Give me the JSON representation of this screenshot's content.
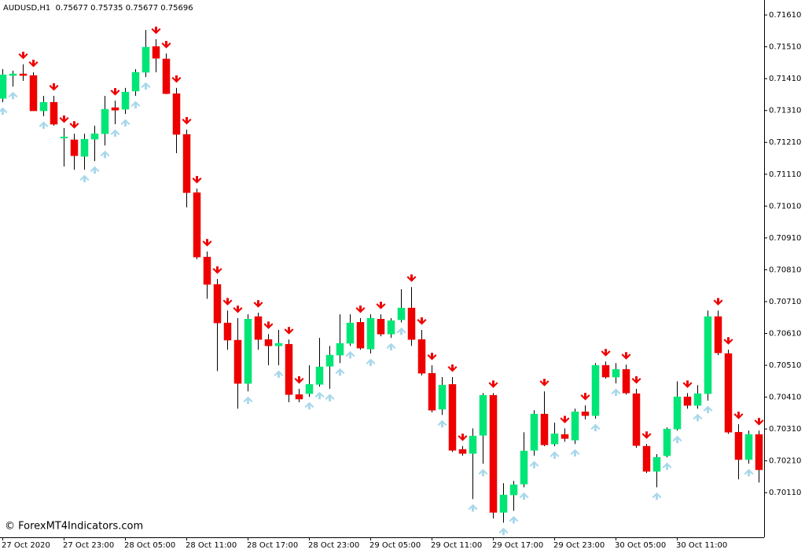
{
  "chart_data": {
    "type": "candlestick",
    "title": "AUDUSD,H1  0.75677 0.75735 0.75677 0.75696",
    "watermark": "© ForexMT4Indicators.com",
    "up_color": "#00e676",
    "down_color": "#ee0000",
    "wick_color": "#000000",
    "signal_down_color": "#ee0000",
    "signal_up_color": "#a8d8ea",
    "categories": [
      "27 Oct 2020",
      null,
      null,
      null,
      null,
      null,
      "27 Oct 23:00",
      null,
      null,
      null,
      null,
      null,
      "28 Oct 05:00",
      null,
      null,
      null,
      null,
      null,
      "28 Oct 11:00",
      null,
      null,
      null,
      null,
      null,
      "28 Oct 17:00",
      null,
      null,
      null,
      null,
      null,
      "28 Oct 23:00",
      null,
      null,
      null,
      null,
      null,
      "29 Oct 05:00",
      null,
      null,
      null,
      null,
      null,
      "29 Oct 11:00",
      null,
      null,
      null,
      null,
      null,
      "29 Oct 17:00",
      null,
      null,
      null,
      null,
      null,
      "29 Oct 23:00",
      null,
      null,
      null,
      null,
      null,
      "30 Oct 05:00",
      null,
      null,
      null,
      null,
      null,
      "30 Oct 11:00",
      null,
      null,
      null,
      null,
      null,
      null,
      null,
      null
    ],
    "open": [
      0.71348,
      0.7142,
      0.71425,
      0.7142,
      0.71309,
      0.71336,
      0.71225,
      0.71218,
      0.71166,
      0.7122,
      0.71237,
      0.71319,
      0.71314,
      0.71371,
      0.7143,
      0.71511,
      0.71472,
      0.71363,
      0.71235,
      0.71052,
      0.7085,
      0.70764,
      0.70643,
      0.70589,
      0.70453,
      0.70663,
      0.70591,
      0.70571,
      0.70576,
      0.70418,
      0.70421,
      0.7045,
      0.70507,
      0.70542,
      0.70579,
      0.70645,
      0.70561,
      0.70655,
      0.70608,
      0.70653,
      0.7069,
      0.70591,
      0.70485,
      0.70372,
      0.7045,
      0.70246,
      0.70233,
      0.7029,
      0.70416,
      0.70048,
      0.70103,
      0.70137,
      0.70243,
      0.70357,
      0.70263,
      0.70293,
      0.70275,
      0.70364,
      0.70352,
      0.7051,
      0.70473,
      0.70497,
      0.70421,
      0.70256,
      0.70177,
      0.70226,
      0.7031,
      0.70411,
      0.70384,
      0.70421,
      0.70663,
      0.70547,
      0.703,
      0.70214,
      0.70293
    ],
    "high": [
      0.7144,
      0.71435,
      0.71455,
      0.7143,
      0.71356,
      0.71356,
      0.71255,
      0.71237,
      0.71237,
      0.71262,
      0.71356,
      0.71341,
      0.71381,
      0.7144,
      0.71563,
      0.71534,
      0.71489,
      0.71381,
      0.7125,
      0.71065,
      0.70867,
      0.70781,
      0.70682,
      0.70658,
      0.7067,
      0.70675,
      0.70608,
      0.70621,
      0.70591,
      0.70436,
      0.7051,
      0.70596,
      0.70571,
      0.7067,
      0.7067,
      0.70658,
      0.7067,
      0.7067,
      0.70658,
      0.70749,
      0.70756,
      0.70621,
      0.7051,
      0.70473,
      0.70473,
      0.70256,
      0.70312,
      0.70423,
      0.70423,
      0.7014,
      0.70147,
      0.703,
      0.70369,
      0.70428,
      0.7033,
      0.70312,
      0.70374,
      0.70384,
      0.70517,
      0.70522,
      0.70517,
      0.70512,
      0.70436,
      0.70263,
      0.70231,
      0.70315,
      0.7046,
      0.70423,
      0.70448,
      0.70682,
      0.70682,
      0.70559,
      0.70325,
      0.70305,
      0.70305
    ],
    "low": [
      0.71336,
      0.71385,
      0.71403,
      0.71309,
      0.71292,
      0.71262,
      0.71134,
      0.71124,
      0.71124,
      0.71151,
      0.712,
      0.71267,
      0.71299,
      0.71356,
      0.71415,
      0.7143,
      0.71361,
      0.71176,
      0.71006,
      0.70843,
      0.70719,
      0.70492,
      0.70559,
      0.70374,
      0.70428,
      0.70559,
      0.7051,
      0.7051,
      0.70394,
      0.70394,
      0.70411,
      0.70443,
      0.70436,
      0.70517,
      0.70571,
      0.70559,
      0.70547,
      0.70601,
      0.70596,
      0.70645,
      0.70571,
      0.70478,
      0.70362,
      0.70354,
      0.70238,
      0.70226,
      0.7009,
      0.70201,
      0.70029,
      0.70016,
      0.70053,
      0.70127,
      0.70226,
      0.70256,
      0.70256,
      0.7027,
      0.70263,
      0.7034,
      0.70342,
      0.70468,
      0.70453,
      0.70418,
      0.70251,
      0.70172,
      0.70127,
      0.70221,
      0.70305,
      0.70374,
      0.70374,
      0.70399,
      0.70542,
      0.70295,
      0.70152,
      0.70201,
      0.70142
    ],
    "close": [
      0.71422,
      0.71425,
      0.7142,
      0.71309,
      0.71336,
      0.71267,
      0.71227,
      0.71168,
      0.7122,
      0.71237,
      0.71314,
      0.71311,
      0.71368,
      0.7143,
      0.71509,
      0.71474,
      0.71363,
      0.71235,
      0.71052,
      0.7085,
      0.70764,
      0.70643,
      0.70589,
      0.70453,
      0.70655,
      0.70591,
      0.70571,
      0.70579,
      0.70418,
      0.70404,
      0.7045,
      0.70505,
      0.70542,
      0.70579,
      0.70643,
      0.70564,
      0.70658,
      0.70608,
      0.7065,
      0.7069,
      0.70591,
      0.70485,
      0.70369,
      0.70448,
      0.70243,
      0.70233,
      0.70288,
      0.70416,
      0.70048,
      0.70103,
      0.70135,
      0.70241,
      0.70357,
      0.7026,
      0.70295,
      0.7028,
      0.70364,
      0.70352,
      0.7051,
      0.70473,
      0.70497,
      0.70423,
      0.70258,
      0.70177,
      0.70221,
      0.7031,
      0.70411,
      0.70384,
      0.70421,
      0.70663,
      0.70549,
      0.703,
      0.70214,
      0.70293,
      0.70182
    ],
    "signals": [
      "up",
      "up",
      "down",
      "down",
      "up",
      "down",
      "down",
      "down",
      "up",
      "up",
      "up",
      "both",
      "up",
      "up",
      "up",
      "down",
      "down",
      "down",
      "down",
      "down",
      "down",
      "down",
      "down",
      "down",
      "up",
      "down",
      "down",
      "up",
      "down",
      "down",
      "up",
      "up",
      "up",
      "up",
      "up",
      "down",
      "up",
      "down",
      "up",
      "up",
      "down",
      "down",
      "down",
      "up",
      "down",
      "down",
      "up",
      "up",
      "down",
      "up",
      "up",
      "up",
      "up",
      "down",
      "up",
      "down",
      "up",
      "down",
      "up",
      "down",
      "up",
      "down",
      "down",
      "down",
      "up",
      "up",
      "up",
      "down",
      "up",
      "up",
      "down",
      "down",
      "down",
      "up",
      "down"
    ],
    "ylim": [
      0.6997,
      0.71657
    ],
    "yticks": [
      {
        "value": 0.7161,
        "label": "0.71610"
      },
      {
        "value": 0.7151,
        "label": "0.71510"
      },
      {
        "value": 0.7141,
        "label": "0.71410"
      },
      {
        "value": 0.7131,
        "label": "0.71310"
      },
      {
        "value": 0.7121,
        "label": "0.71210"
      },
      {
        "value": 0.7111,
        "label": "0.71110"
      },
      {
        "value": 0.7101,
        "label": "0.71010"
      },
      {
        "value": 0.7091,
        "label": "0.70910"
      },
      {
        "value": 0.7081,
        "label": "0.70810"
      },
      {
        "value": 0.7071,
        "label": "0.70710"
      },
      {
        "value": 0.7061,
        "label": "0.70610"
      },
      {
        "value": 0.7051,
        "label": "0.70510"
      },
      {
        "value": 0.7041,
        "label": "0.70410"
      },
      {
        "value": 0.7031,
        "label": "0.70310"
      },
      {
        "value": 0.7021,
        "label": "0.70210"
      },
      {
        "value": 0.7011,
        "label": "0.70110"
      }
    ],
    "grid": false
  }
}
